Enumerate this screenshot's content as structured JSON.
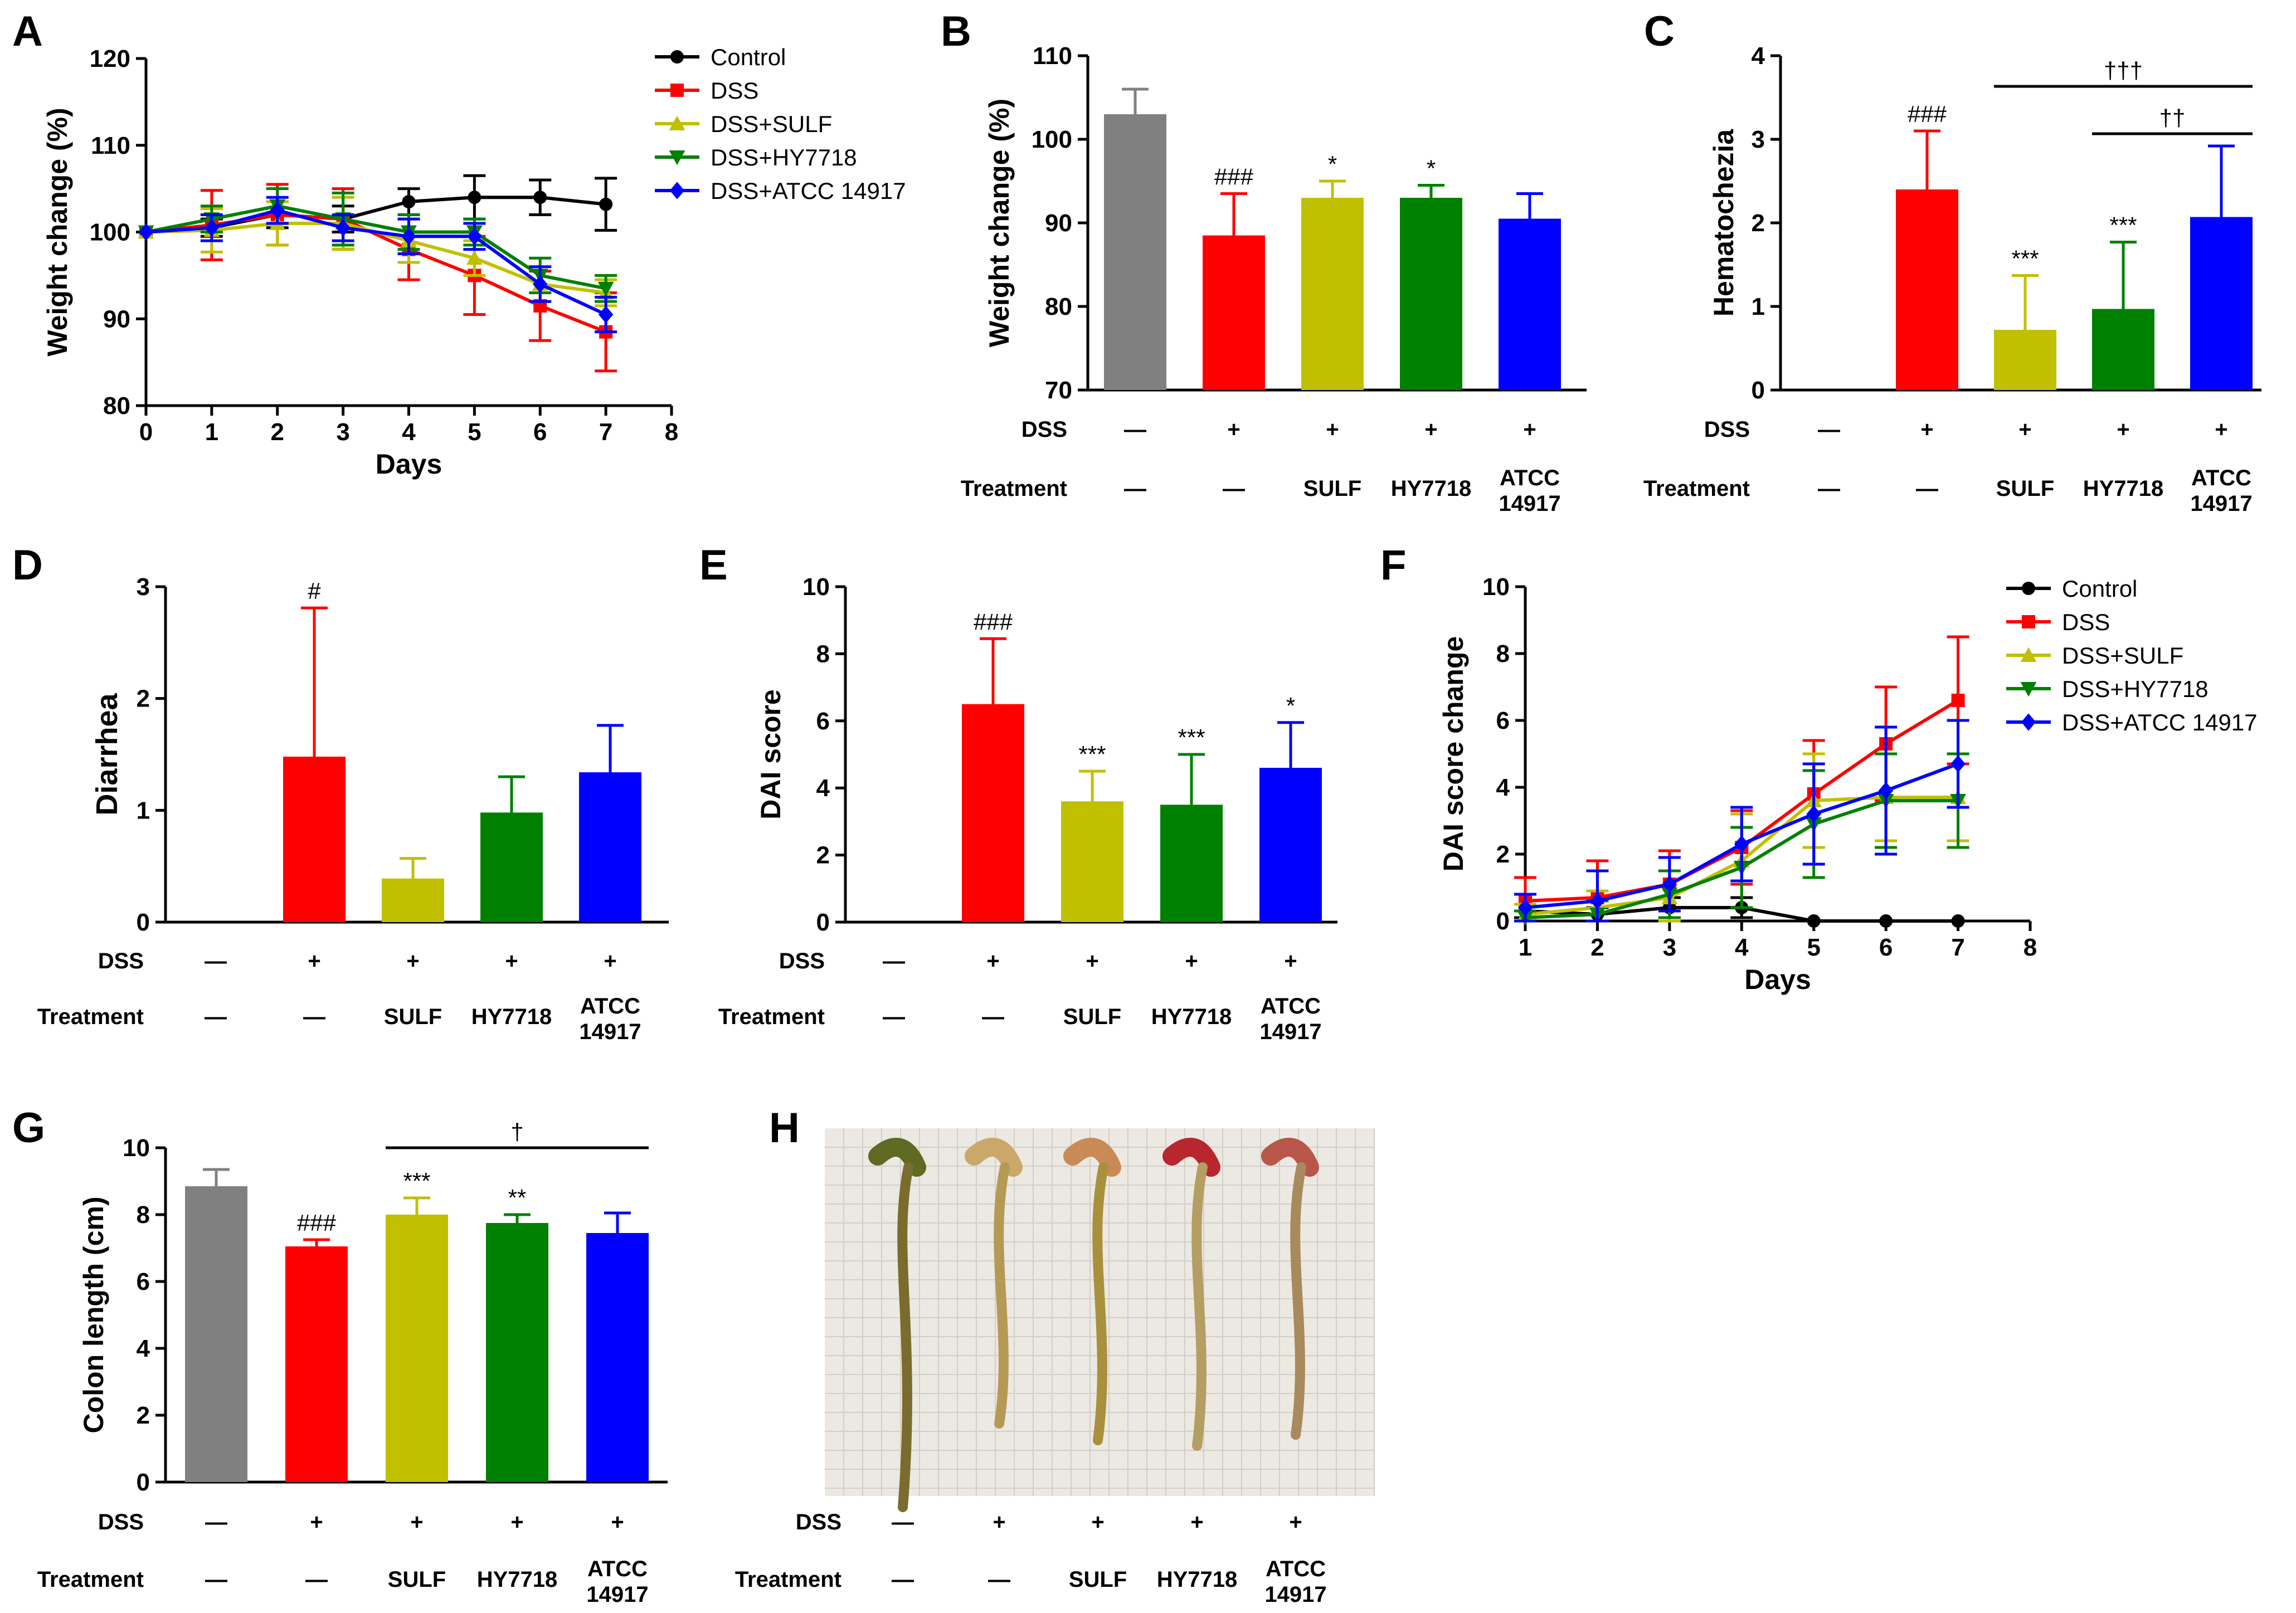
{
  "conditions": {
    "dss_label": "DSS",
    "treatment_label": "Treatment",
    "dss": [
      "—",
      "+",
      "+",
      "+",
      "+"
    ],
    "treatment": [
      "—",
      "—",
      "SULF",
      "HY7718",
      "ATCC\n14917"
    ],
    "colors": [
      "#808080",
      "#ff0000",
      "#c0c000",
      "#008000",
      "#0000ff"
    ]
  },
  "chart_data": [
    {
      "panel": "A",
      "type": "line",
      "xlabel": "Days",
      "ylabel": "Weight change (%)",
      "xlim": [
        0,
        8
      ],
      "ylim": [
        80,
        120
      ],
      "xticks": [
        0,
        1,
        2,
        3,
        4,
        5,
        6,
        7,
        8
      ],
      "yticks": [
        80,
        90,
        100,
        110,
        120
      ],
      "legend_position": "top-right",
      "x": [
        0,
        1,
        2,
        3,
        4,
        5,
        6,
        7
      ],
      "series": [
        {
          "name": "Control",
          "color": "#000000",
          "marker": "circle",
          "values": [
            100,
            100.5,
            102,
            101.5,
            103.5,
            104,
            104,
            103.2
          ],
          "errors": [
            0,
            1,
            1.5,
            1.5,
            1.5,
            2.5,
            2,
            3
          ]
        },
        {
          "name": "DSS",
          "color": "#ff0000",
          "marker": "square",
          "values": [
            100,
            100.8,
            102,
            101.5,
            98,
            95,
            91.5,
            88.5
          ],
          "errors": [
            0,
            4,
            3.5,
            3.5,
            3.5,
            4.5,
            4,
            4.5
          ]
        },
        {
          "name": "DSS+SULF",
          "color": "#c0c000",
          "marker": "triangle-up",
          "values": [
            100,
            100.2,
            101,
            101,
            99,
            97,
            94,
            93
          ],
          "errors": [
            0,
            2.5,
            2.5,
            3,
            2.5,
            2,
            2,
            1.5
          ]
        },
        {
          "name": "DSS+HY7718",
          "color": "#008000",
          "marker": "triangle-down",
          "values": [
            100,
            101.5,
            103,
            101.5,
            100,
            100,
            95,
            93.5
          ],
          "errors": [
            0,
            1.5,
            2,
            3,
            2,
            1.5,
            2,
            1.5
          ]
        },
        {
          "name": "DSS+ATCC 14917",
          "color": "#0000ff",
          "marker": "diamond",
          "values": [
            100,
            100.5,
            102.5,
            100.5,
            99.5,
            99.5,
            94,
            90.5
          ],
          "errors": [
            0,
            1.5,
            1.5,
            1.5,
            2,
            1.5,
            2,
            2
          ]
        }
      ]
    },
    {
      "panel": "B",
      "type": "bar",
      "ylabel": "Weight change (%)",
      "ylim": [
        70,
        110
      ],
      "yticks": [
        70,
        80,
        90,
        100,
        110
      ],
      "values": [
        103,
        88.5,
        93,
        93,
        90.5
      ],
      "errors": [
        3,
        5,
        2,
        1.5,
        3
      ],
      "annotations": [
        "",
        "###",
        "*",
        "*",
        ""
      ]
    },
    {
      "panel": "C",
      "type": "bar",
      "ylabel": "Hematochezia",
      "ylim": [
        0,
        4
      ],
      "yticks": [
        0,
        1,
        2,
        3,
        4
      ],
      "values": [
        0,
        2.4,
        0.72,
        0.97,
        2.07
      ],
      "errors": [
        0,
        0.7,
        0.65,
        0.8,
        0.85
      ],
      "annotations": [
        "",
        "###",
        "***",
        "***",
        ""
      ],
      "brackets": [
        {
          "from": 2,
          "to": 4,
          "label": "†††"
        },
        {
          "from": 3,
          "to": 4,
          "label": "††"
        }
      ]
    },
    {
      "panel": "D",
      "type": "bar",
      "ylabel": "Diarrhea",
      "ylim": [
        0,
        3
      ],
      "yticks": [
        0,
        1,
        2,
        3
      ],
      "values": [
        0,
        1.48,
        0.39,
        0.98,
        1.34
      ],
      "errors": [
        0,
        1.33,
        0.18,
        0.32,
        0.42
      ],
      "annotations": [
        "",
        "#",
        "",
        "",
        ""
      ]
    },
    {
      "panel": "E",
      "type": "bar",
      "ylabel": "DAI score",
      "ylim": [
        0,
        10
      ],
      "yticks": [
        0,
        2,
        4,
        6,
        8,
        10
      ],
      "values": [
        0,
        6.5,
        3.6,
        3.5,
        4.6
      ],
      "errors": [
        0,
        1.95,
        0.9,
        1.5,
        1.35
      ],
      "annotations": [
        "",
        "###",
        "***",
        "***",
        "*"
      ]
    },
    {
      "panel": "F",
      "type": "line",
      "xlabel": "Days",
      "ylabel": "DAI score change",
      "xlim": [
        1,
        8
      ],
      "ylim": [
        0,
        10
      ],
      "xticks": [
        1,
        2,
        3,
        4,
        5,
        6,
        7,
        8
      ],
      "yticks": [
        0,
        2,
        4,
        6,
        8,
        10
      ],
      "legend_position": "top-right",
      "x": [
        1,
        2,
        3,
        4,
        5,
        6,
        7
      ],
      "series": [
        {
          "name": "Control",
          "color": "#000000",
          "marker": "circle",
          "values": [
            0.3,
            0.2,
            0.4,
            0.4,
            0,
            0,
            0
          ],
          "errors": [
            0.2,
            0.2,
            0.3,
            0.3,
            0,
            0,
            0
          ]
        },
        {
          "name": "DSS",
          "color": "#ff0000",
          "marker": "square",
          "values": [
            0.6,
            0.7,
            1.1,
            2.2,
            3.8,
            5.3,
            6.6
          ],
          "errors": [
            0.7,
            1.1,
            1.0,
            1.1,
            1.6,
            1.7,
            1.9
          ]
        },
        {
          "name": "DSS+SULF",
          "color": "#c0c000",
          "marker": "triangle-up",
          "values": [
            0.2,
            0.4,
            0.7,
            1.8,
            3.6,
            3.7,
            3.7
          ],
          "errors": [
            0.3,
            0.5,
            0.8,
            1.4,
            1.4,
            1.3,
            1.3
          ]
        },
        {
          "name": "DSS+HY7718",
          "color": "#008000",
          "marker": "triangle-down",
          "values": [
            0.1,
            0.2,
            0.8,
            1.6,
            2.9,
            3.6,
            3.6
          ],
          "errors": [
            0.2,
            0.4,
            0.7,
            1.2,
            1.6,
            1.4,
            1.4
          ]
        },
        {
          "name": "DSS+ATCC 14917",
          "color": "#0000ff",
          "marker": "diamond",
          "values": [
            0.4,
            0.6,
            1.1,
            2.3,
            3.2,
            3.9,
            4.7
          ],
          "errors": [
            0.4,
            0.9,
            0.8,
            1.1,
            1.5,
            1.9,
            1.3
          ]
        }
      ]
    },
    {
      "panel": "G",
      "type": "bar",
      "ylabel": "Colon length (cm)",
      "ylim": [
        0,
        10
      ],
      "yticks": [
        0,
        2,
        4,
        6,
        8,
        10
      ],
      "values": [
        8.85,
        7.05,
        8.0,
        7.75,
        7.45
      ],
      "errors": [
        0.5,
        0.2,
        0.5,
        0.25,
        0.6
      ],
      "annotations": [
        "",
        "###",
        "***",
        "**",
        ""
      ],
      "brackets": [
        {
          "from": 2,
          "to": 4,
          "label": "†"
        }
      ]
    }
  ]
}
